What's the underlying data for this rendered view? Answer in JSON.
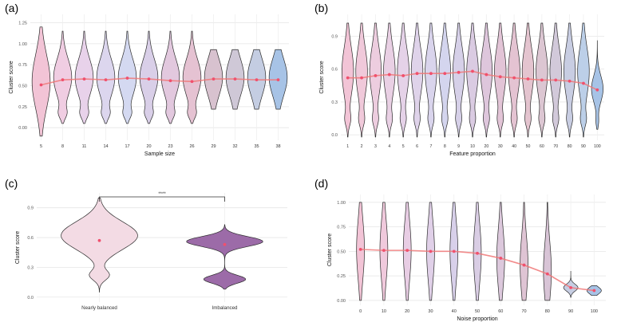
{
  "chart_data": [
    {
      "panel": "(a)",
      "type": "violin",
      "title": "",
      "xlabel": "Sample size",
      "ylabel": "Cluster score",
      "categories": [
        "5",
        "8",
        "11",
        "14",
        "17",
        "20",
        "23",
        "26",
        "29",
        "32",
        "35",
        "38"
      ],
      "means": [
        0.51,
        0.57,
        0.58,
        0.57,
        0.59,
        0.58,
        0.56,
        0.55,
        0.58,
        0.58,
        0.57,
        0.57
      ],
      "y_ticks": [
        "0.00",
        "0.25",
        "0.50",
        "0.75",
        "1.00",
        "1.25"
      ],
      "ylim": [
        -0.15,
        1.35
      ],
      "colors": [
        "#f2c4d6",
        "#f0cde2",
        "#e8d2ea",
        "#dcd6ee",
        "#d4d9f1",
        "#d9cfe8",
        "#e2c8de",
        "#e5c2d2",
        "#d8c2cf",
        "#cfc8d7",
        "#c4cde2",
        "#a7c3e6"
      ]
    },
    {
      "panel": "(b)",
      "type": "violin",
      "title": "",
      "xlabel": "Feature proportion",
      "ylabel": "Cluster score",
      "categories": [
        "1",
        "2",
        "3",
        "4",
        "5",
        "6",
        "7",
        "8",
        "9",
        "10",
        "20",
        "30",
        "40",
        "50",
        "60",
        "70",
        "80",
        "90",
        "100"
      ],
      "means": [
        0.52,
        0.52,
        0.54,
        0.55,
        0.54,
        0.56,
        0.56,
        0.56,
        0.57,
        0.58,
        0.55,
        0.53,
        0.52,
        0.51,
        0.5,
        0.5,
        0.49,
        0.47,
        0.41
      ],
      "y_ticks": [
        "0.0",
        "0.3",
        "0.6",
        "0.9"
      ],
      "ylim": [
        -0.05,
        1.1
      ],
      "colors": [
        "#f2c4d6",
        "#f0c9da",
        "#edcddf",
        "#e9d0e4",
        "#e5d2e8",
        "#dfd3ea",
        "#d9d4ec",
        "#d4d5ee",
        "#d6d0e8",
        "#dacbe2",
        "#dec6dc",
        "#e2c4d6",
        "#e4c3d2",
        "#e4c4cf",
        "#dcc6d2",
        "#d2c9da",
        "#c8cde2",
        "#bccfe8",
        "#a7c3e6"
      ]
    },
    {
      "panel": "(c)",
      "type": "violin",
      "title": "",
      "xlabel": "",
      "ylabel": "Cluster score",
      "categories": [
        "Nearly balanced",
        "Imbalanced"
      ],
      "means": [
        0.57,
        0.53
      ],
      "y_ticks": [
        "0.0",
        "0.3",
        "0.6",
        "0.9"
      ],
      "ylim": [
        -0.05,
        1.05
      ],
      "significance": "****",
      "colors": [
        "#f3dbe4",
        "#9c6ba8"
      ]
    },
    {
      "panel": "(d)",
      "type": "violin",
      "title": "",
      "xlabel": "Noise proportion",
      "ylabel": "Cluster score",
      "categories": [
        "0",
        "10",
        "20",
        "30",
        "40",
        "50",
        "60",
        "70",
        "80",
        "90",
        "100"
      ],
      "means": [
        0.52,
        0.51,
        0.51,
        0.5,
        0.5,
        0.48,
        0.43,
        0.36,
        0.27,
        0.13,
        0.1
      ],
      "y_ticks": [
        "0.00",
        "0.25",
        "0.50",
        "0.75",
        "1.00"
      ],
      "ylim": [
        -0.05,
        1.08
      ],
      "colors": [
        "#f2c4d6",
        "#f0c9dc",
        "#e8cde4",
        "#e0d0e8",
        "#d8d0ea",
        "#d9cde4",
        "#dcc8dc",
        "#dfc4d4",
        "#d8c4d6",
        "#c6cde2",
        "#a7c3e6"
      ]
    }
  ]
}
